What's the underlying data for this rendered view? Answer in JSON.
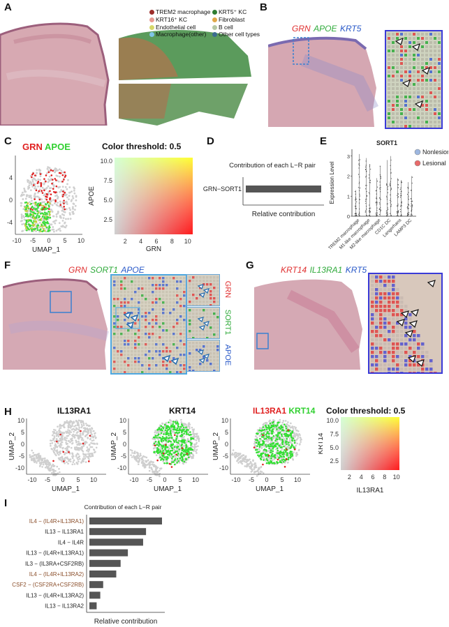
{
  "panels": {
    "A": {
      "label": "A",
      "legend": [
        {
          "name": "TREM2 macrophage",
          "color": "#9c2d2a"
        },
        {
          "name": "KRT5⁺ KC",
          "color": "#2e7d32"
        },
        {
          "name": "KRT16⁺ KC",
          "color": "#e89a92"
        },
        {
          "name": "Fibroblast",
          "color": "#e0a84a"
        },
        {
          "name": "Endothelial cell",
          "color": "#d6d86a"
        },
        {
          "name": "B cell",
          "color": "#b5c7a4"
        },
        {
          "name": "Macrophage(other)",
          "color": "#7fc4e8"
        },
        {
          "name": "Other cell types",
          "color": "#3b6c8f"
        }
      ]
    },
    "B": {
      "label": "B",
      "genes": [
        {
          "name": "GRN",
          "color": "#e03030"
        },
        {
          "name": "APOE",
          "color": "#2eaa3a"
        },
        {
          "name": "KRT5",
          "color": "#2858c8"
        }
      ]
    },
    "C": {
      "label": "C",
      "title_genes": [
        {
          "name": "GRN",
          "color": "#e02020"
        },
        {
          "name": "APOE",
          "color": "#30d030"
        }
      ],
      "umap_xlabel": "UMAP_1",
      "umap_xticks": [
        "-10",
        "-5",
        "0",
        "5",
        "10"
      ],
      "umap_yticks": [
        "4",
        "0",
        "-4"
      ],
      "threshold_title": "Color threshold: 0.5",
      "grid_xlabel": "GRN",
      "grid_ylabel": "APOE",
      "grid_xticks": [
        "2",
        "4",
        "6",
        "8",
        "10"
      ],
      "grid_yticks": [
        "10.0",
        "7.5",
        "5.0",
        "2.5"
      ]
    },
    "D": {
      "label": "D",
      "title": "Contribution of each L−R pair",
      "xlabel": "Relative contribution"
    },
    "E": {
      "label": "E",
      "title": "SORT1",
      "ylabel": "Expression Level",
      "legend": [
        {
          "name": "Nonlesional",
          "color": "#9db7e0"
        },
        {
          "name": "Lesional",
          "color": "#e86a6a"
        }
      ]
    },
    "F": {
      "label": "F",
      "genes": [
        {
          "name": "GRN",
          "color": "#e03030"
        },
        {
          "name": "SORT1",
          "color": "#2eaa3a"
        },
        {
          "name": "APOE",
          "color": "#2858c8"
        }
      ],
      "side_labels": [
        {
          "name": "GRN",
          "color": "#e03030"
        },
        {
          "name": "SORT1",
          "color": "#2eaa3a"
        },
        {
          "name": "APOE",
          "color": "#2858c8"
        }
      ]
    },
    "G": {
      "label": "G",
      "genes": [
        {
          "name": "KRT14",
          "color": "#e03030"
        },
        {
          "name": "IL13RA1",
          "color": "#2eaa3a"
        },
        {
          "name": "KRT5",
          "color": "#2858c8"
        }
      ]
    },
    "H": {
      "label": "H",
      "umaps": [
        {
          "title": "IL13RA1",
          "title_color": "#111111"
        },
        {
          "title": "KRT14",
          "title_color": "#111111"
        }
      ],
      "combo_title": [
        {
          "name": "IL13RA1",
          "color": "#e02020"
        },
        {
          "name": "KRT14",
          "color": "#30d030"
        }
      ],
      "umap_xlabel": "UMAP_1",
      "umap_ylabel": "UMAP_2",
      "umap_xticks": [
        "-10",
        "-5",
        "0",
        "5",
        "10"
      ],
      "umap_yticks": [
        "10",
        "5",
        "0",
        "-5",
        "-10"
      ],
      "threshold_title": "Color threshold: 0.5",
      "grid_xlabel": "IL13RA1",
      "grid_ylabel": "KRT14",
      "grid_xticks": [
        "2",
        "4",
        "6",
        "8",
        "10"
      ],
      "grid_yticks": [
        "10.0",
        "7.5",
        "5.0",
        "2.5"
      ]
    },
    "I": {
      "label": "I",
      "title": "Contribution of each L−R pair",
      "xlabel": "Relative contribution"
    }
  },
  "chart_data": [
    {
      "type": "bar",
      "panel": "D",
      "orientation": "horizontal",
      "title": "Contribution of each L−R pair",
      "xlabel": "Relative contribution",
      "categories": [
        "GRN−SORT1"
      ],
      "values": [
        1.0
      ],
      "color": "#555555"
    },
    {
      "type": "scatter",
      "panel": "E",
      "title": "SORT1",
      "ylabel": "Expression Level",
      "categories": [
        "TREM2 macrophage",
        "M1-like macrophage",
        "M2-like macrophage",
        "CD1C DC",
        "Langerhans",
        "LAMP3 DC"
      ],
      "yticks": [
        "0",
        "1",
        "2",
        "3"
      ],
      "ylim": [
        0,
        3.2
      ],
      "series": [
        {
          "name": "Nonlesional",
          "max_values": [
            1.3,
            2.9,
            1.9,
            2.8,
            1.9,
            1.7
          ]
        },
        {
          "name": "Lesional",
          "max_values": [
            3.1,
            2.6,
            2.5,
            3.0,
            1.8,
            2.0
          ]
        }
      ]
    },
    {
      "type": "bar",
      "panel": "I",
      "orientation": "horizontal",
      "title": "Contribution of each L−R pair",
      "xlabel": "Relative contribution",
      "categories": [
        "IL4 − (IL4R+IL13RA1)",
        "IL13 − IL13RA1",
        "IL4 − IL4R",
        "IL13 − (IL4R+IL13RA1)",
        "IL3 − (IL3RA+CSF2RB)",
        "IL4 − (IL4R+IL13RA2)",
        "CSF2 − (CSF2RA+CSF2RB)",
        "IL13 − (IL4R+IL13RA2)",
        "IL13 − IL13RA2"
      ],
      "category_colors": [
        "#8a4e2a",
        "#222222",
        "#222222",
        "#222222",
        "#222222",
        "#8a4e2a",
        "#8a4e2a",
        "#222222",
        "#222222"
      ],
      "values": [
        1.0,
        0.78,
        0.74,
        0.53,
        0.43,
        0.37,
        0.19,
        0.15,
        0.1
      ],
      "color": "#555555"
    }
  ]
}
